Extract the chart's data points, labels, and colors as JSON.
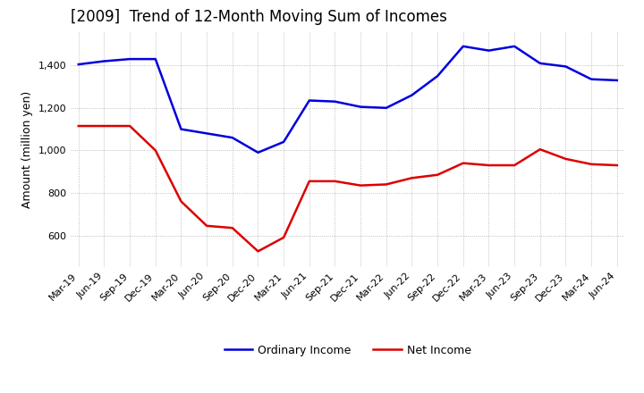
{
  "title": "[2009]  Trend of 12-Month Moving Sum of Incomes",
  "ylabel": "Amount (million yen)",
  "x_labels": [
    "Mar-19",
    "Jun-19",
    "Sep-19",
    "Dec-19",
    "Mar-20",
    "Jun-20",
    "Sep-20",
    "Dec-20",
    "Mar-21",
    "Jun-21",
    "Sep-21",
    "Dec-21",
    "Mar-22",
    "Jun-22",
    "Sep-22",
    "Dec-22",
    "Mar-23",
    "Jun-23",
    "Sep-23",
    "Dec-23",
    "Mar-24",
    "Jun-24"
  ],
  "ordinary_income": [
    1405,
    1420,
    1430,
    1430,
    1100,
    1080,
    1060,
    990,
    1040,
    1235,
    1230,
    1205,
    1200,
    1260,
    1350,
    1490,
    1470,
    1490,
    1410,
    1395,
    1335,
    1330
  ],
  "net_income": [
    1115,
    1115,
    1115,
    1000,
    760,
    645,
    635,
    525,
    590,
    855,
    855,
    835,
    840,
    870,
    885,
    940,
    930,
    930,
    1005,
    960,
    935,
    930
  ],
  "ordinary_color": "#0000dd",
  "net_color": "#dd0000",
  "line_width": 1.8,
  "ylim_min": 450,
  "ylim_max": 1560,
  "yticks": [
    600,
    800,
    1000,
    1200,
    1400
  ],
  "background_color": "#ffffff",
  "grid_color": "#999999",
  "title_fontsize": 12,
  "label_fontsize": 9,
  "tick_fontsize": 8,
  "legend_fontsize": 9
}
